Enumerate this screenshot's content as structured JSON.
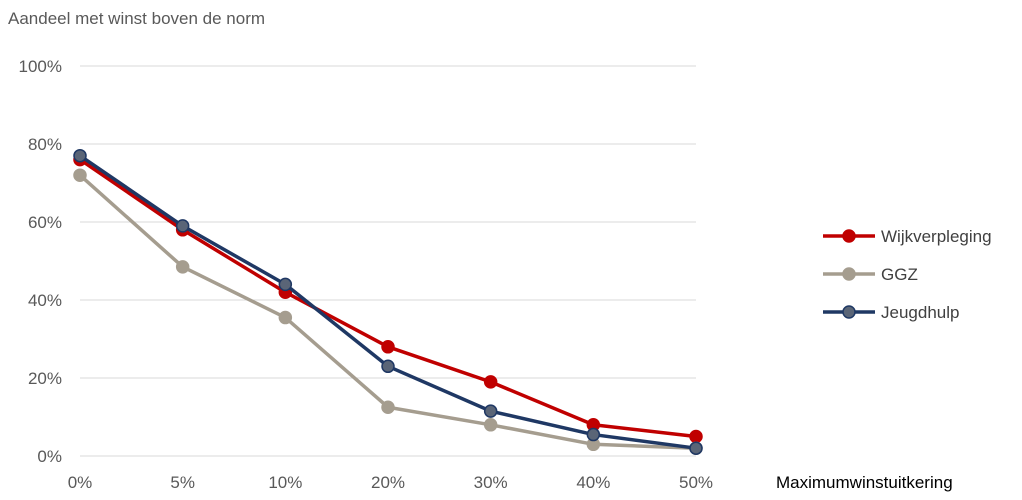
{
  "chart_data": {
    "type": "line",
    "title": "Aandeel met winst boven de norm",
    "xlabel": "Maximumwinstuitkering",
    "ylabel": "",
    "categories": [
      "0%",
      "5%",
      "10%",
      "20%",
      "30%",
      "40%",
      "50%"
    ],
    "yticks": [
      "0%",
      "20%",
      "40%",
      "60%",
      "80%",
      "100%"
    ],
    "ylim": [
      0,
      100
    ],
    "grid": true,
    "legend_position": "right",
    "series": [
      {
        "name": "Wijkverpleging",
        "color": "#c00000",
        "marker_fill": "#c00000",
        "values": [
          76,
          58,
          42,
          28,
          19,
          8,
          5
        ]
      },
      {
        "name": "GGZ",
        "color": "#a59d8f",
        "marker_fill": "#a59d8f",
        "values": [
          72,
          48.5,
          35.5,
          12.5,
          8,
          3,
          2
        ]
      },
      {
        "name": "Jeugdhulp",
        "color": "#1f3864",
        "marker_fill": "#5a6577",
        "values": [
          77,
          59,
          44,
          23,
          11.5,
          5.5,
          2
        ]
      }
    ]
  }
}
